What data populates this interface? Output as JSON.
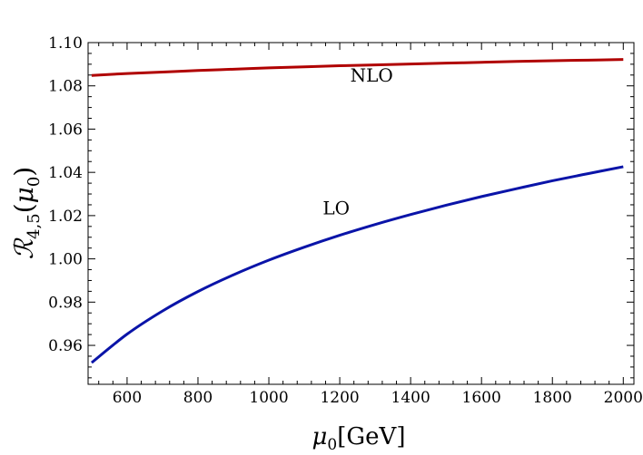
{
  "chart_data": {
    "type": "line",
    "title": "",
    "xlabel": {
      "symbol": "μ",
      "subscript": "0",
      "unit": "[GeV]"
    },
    "ylabel": {
      "symbol": "ℛ",
      "subscript": "4,5",
      "argument_open": "(",
      "argument_symbol": "μ",
      "argument_subscript": "0",
      "argument_close": ")"
    },
    "xlim": [
      490,
      2030
    ],
    "ylim": [
      0.942,
      1.1
    ],
    "xticks": [
      600,
      800,
      1000,
      1200,
      1400,
      1600,
      1800,
      2000
    ],
    "yticks": [
      0.96,
      0.98,
      1.0,
      1.02,
      1.04,
      1.06,
      1.08,
      1.1
    ],
    "xtick_labels": [
      "600",
      "800",
      "1000",
      "1200",
      "1400",
      "1600",
      "1800",
      "2000"
    ],
    "ytick_labels": [
      "0.96",
      "0.98",
      "1.00",
      "1.02",
      "1.04",
      "1.06",
      "1.08",
      "1.10"
    ],
    "grid": false,
    "series": [
      {
        "name": "NLO",
        "color": "#b00000",
        "x": [
          500,
          600,
          700,
          800,
          900,
          1000,
          1100,
          1200,
          1300,
          1400,
          1500,
          1600,
          1700,
          1800,
          1900,
          2000
        ],
        "y": [
          1.0848,
          1.0857,
          1.0864,
          1.0871,
          1.0877,
          1.0883,
          1.0888,
          1.0893,
          1.0897,
          1.0901,
          1.0905,
          1.0909,
          1.0913,
          1.0916,
          1.0919,
          1.0922
        ]
      },
      {
        "name": "LO",
        "color": "#0a14a8",
        "x": [
          500,
          600,
          700,
          800,
          900,
          1000,
          1100,
          1200,
          1300,
          1400,
          1500,
          1600,
          1700,
          1800,
          1900,
          2000
        ],
        "y": [
          0.952,
          0.9652,
          0.9759,
          0.9849,
          0.9926,
          0.9994,
          1.0054,
          1.0109,
          1.0159,
          1.0205,
          1.0248,
          1.0288,
          1.0325,
          1.0361,
          1.0394,
          1.0426
        ]
      }
    ],
    "annotations": [
      {
        "text": "NLO",
        "x": 1290,
        "y": 1.082
      },
      {
        "text": "LO",
        "x": 1190,
        "y": 1.0205
      }
    ]
  }
}
